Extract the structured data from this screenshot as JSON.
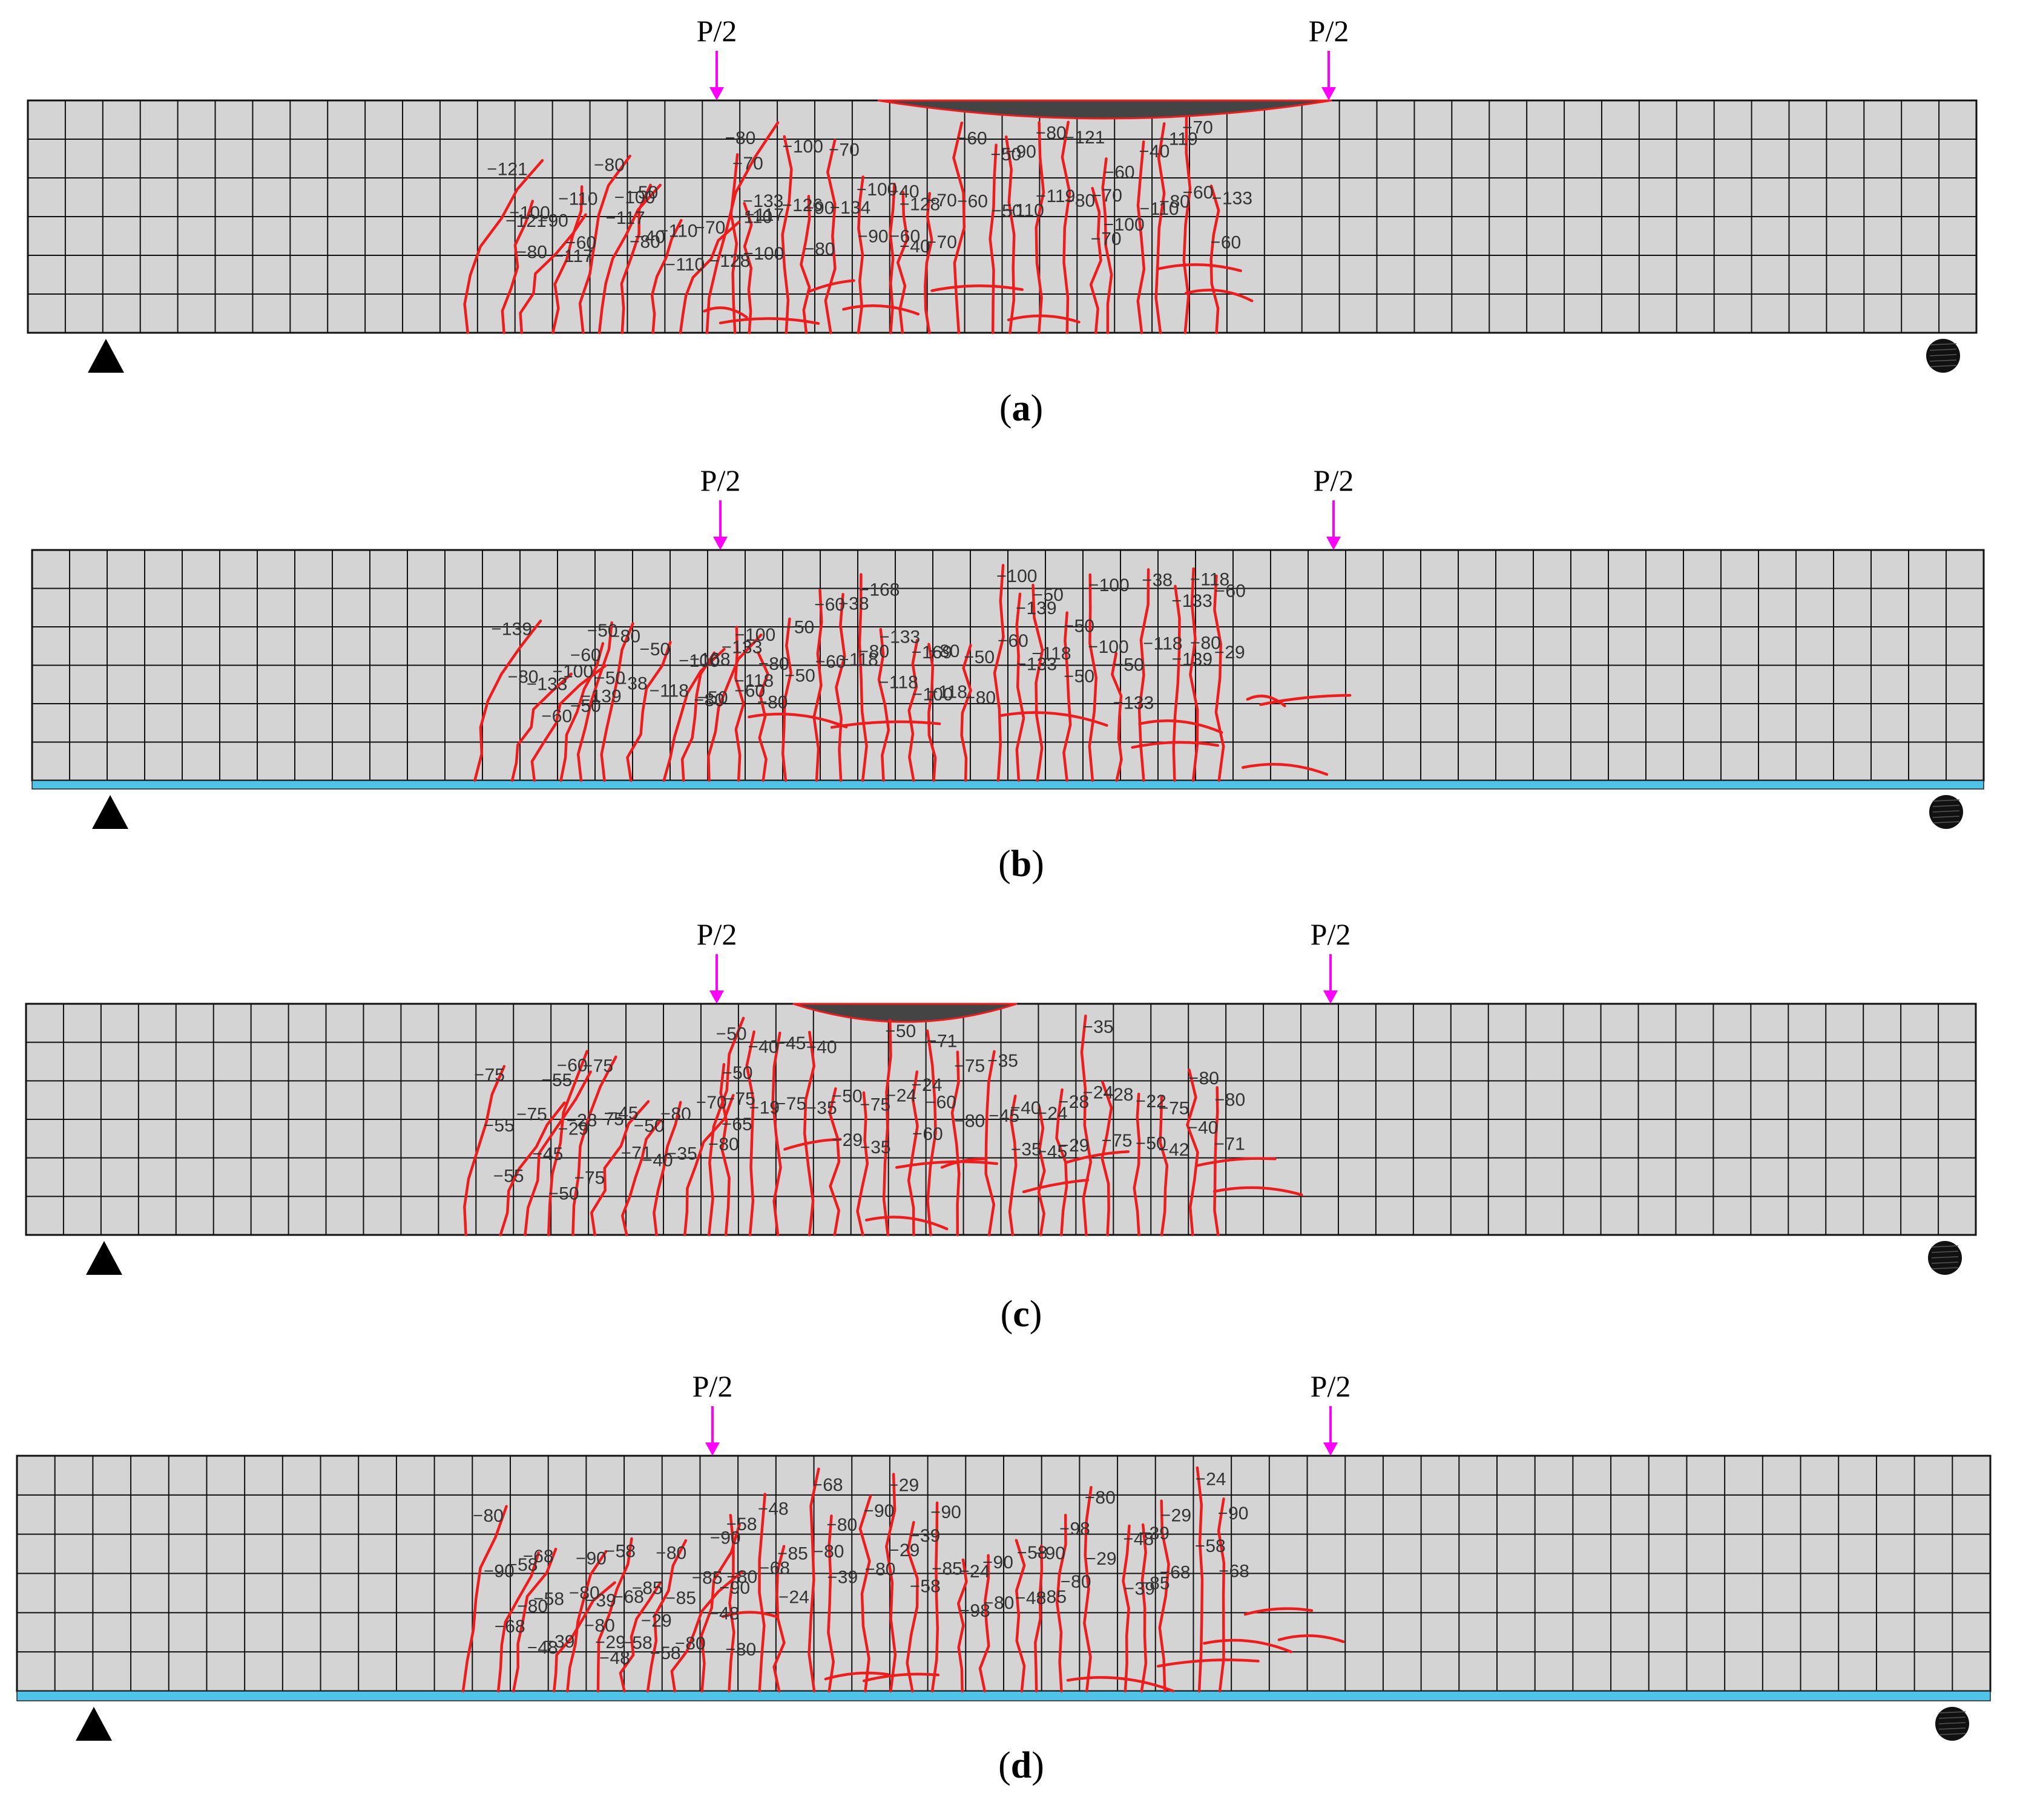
{
  "colors": {
    "beam_fill": "#d4d4d4",
    "grid": "#111111",
    "crack": "#ee1c1c",
    "arrow": "#ff00ff",
    "cfrp_plate": "#4fc3e8",
    "crush_zone": "#444444",
    "support": "#000000"
  },
  "beams": [
    {
      "caption_letter": "a",
      "load_labels": [
        "P/2",
        "P/2"
      ],
      "has_cfrp_plate": false,
      "has_crush_zone": true,
      "crack_labels": [
        "121",
        "100",
        "90",
        "110",
        "80",
        "100",
        "50",
        "110",
        "70",
        "80",
        "70",
        "117",
        "100",
        "90",
        "70",
        "100",
        "40",
        "128",
        "70",
        "60",
        "50",
        "90",
        "80",
        "121",
        "70",
        "60",
        "40",
        "119",
        "70",
        "133",
        "121",
        "80",
        "117",
        "60",
        "117",
        "80",
        "40",
        "110",
        "128",
        "133",
        "110",
        "100",
        "126",
        "80",
        "134",
        "90",
        "60",
        "40",
        "70",
        "60",
        "50",
        "110",
        "119",
        "80",
        "70",
        "100",
        "110",
        "80",
        "60",
        "60"
      ]
    },
    {
      "caption_letter": "b",
      "load_labels": [
        "P/2",
        "P/2"
      ],
      "has_cfrp_plate": true,
      "has_crush_zone": false,
      "crack_labels": [
        "139",
        "133",
        "100",
        "60",
        "50",
        "80",
        "50",
        "100",
        "168",
        "133",
        "100",
        "80",
        "50",
        "60",
        "38",
        "168",
        "133",
        "169",
        "80",
        "50",
        "100",
        "139",
        "50",
        "50",
        "100",
        "50",
        "38",
        "133",
        "118",
        "60",
        "80",
        "60",
        "50",
        "139",
        "50",
        "38",
        "118",
        "80",
        "50",
        "60",
        "118",
        "80",
        "50",
        "60",
        "118",
        "80",
        "118",
        "100",
        "118",
        "80",
        "60",
        "133",
        "118",
        "50",
        "100",
        "133",
        "118",
        "139",
        "80",
        "29"
      ]
    },
    {
      "caption_letter": "c",
      "load_labels": [
        "P/2",
        "P/2"
      ],
      "has_cfrp_plate": false,
      "has_crush_zone": true,
      "crack_labels": [
        "75",
        "75",
        "55",
        "60",
        "75",
        "45",
        "50",
        "80",
        "70",
        "50",
        "50",
        "40",
        "45",
        "40",
        "50",
        "75",
        "50",
        "24",
        "71",
        "75",
        "35",
        "40",
        "24",
        "28",
        "35",
        "28",
        "22",
        "75",
        "80",
        "80",
        "55",
        "45",
        "29",
        "28",
        "75",
        "71",
        "40",
        "35",
        "80",
        "75",
        "65",
        "19",
        "75",
        "35",
        "29",
        "35",
        "24",
        "60",
        "60",
        "80",
        "45",
        "35",
        "45",
        "29",
        "24",
        "75",
        "50",
        "42",
        "40",
        "71",
        "55",
        "50",
        "75"
      ]
    },
    {
      "caption_letter": "d",
      "load_labels": [
        "P/2",
        "P/2"
      ],
      "has_cfrp_plate": true,
      "has_crush_zone": false,
      "crack_labels": [
        "80",
        "58",
        "68",
        "80",
        "90",
        "58",
        "85",
        "80",
        "85",
        "90",
        "58",
        "48",
        "85",
        "68",
        "80",
        "90",
        "29",
        "39",
        "90",
        "24",
        "90",
        "58",
        "90",
        "98",
        "80",
        "48",
        "39",
        "29",
        "24",
        "90",
        "90",
        "80",
        "58",
        "80",
        "39",
        "68",
        "29",
        "85",
        "48",
        "90",
        "80",
        "68",
        "24",
        "80",
        "39",
        "80",
        "29",
        "58",
        "85",
        "98",
        "80",
        "48",
        "85",
        "80",
        "29",
        "39",
        "85",
        "68",
        "58",
        "68",
        "68",
        "48",
        "39",
        "48",
        "29",
        "58",
        "58",
        "80",
        "80"
      ]
    }
  ]
}
